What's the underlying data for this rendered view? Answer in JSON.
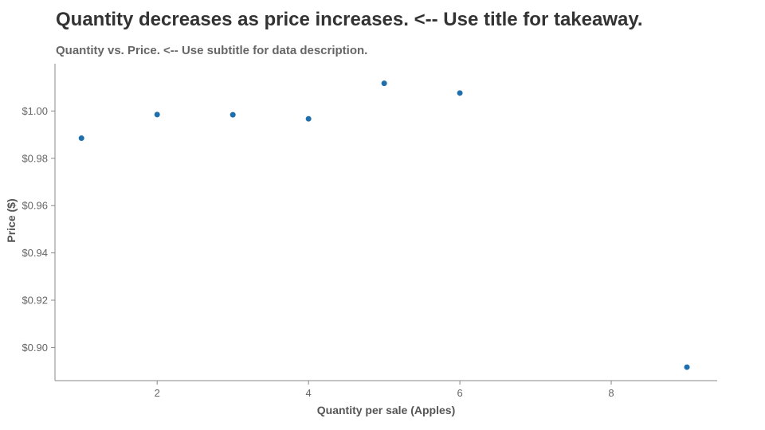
{
  "chart_data": {
    "type": "scatter",
    "title": "Quantity decreases as price increases. <--  Use title for takeaway.",
    "subtitle": "Quantity vs. Price. <-- Use subtitle for data description.",
    "xlabel": "Quantity per sale (Apples)",
    "ylabel": "Price ($)",
    "xlim": [
      0.65,
      9.4
    ],
    "ylim": [
      0.886,
      1.02
    ],
    "x_ticks": [
      2,
      4,
      6,
      8
    ],
    "x_tick_labels": [
      "2",
      "4",
      "6",
      "8"
    ],
    "y_ticks": [
      0.9,
      0.92,
      0.94,
      0.96,
      0.98,
      1.0
    ],
    "y_tick_labels": [
      "$0.90",
      "$0.92",
      "$0.94",
      "$0.96",
      "$0.98",
      "$1.00"
    ],
    "points": [
      {
        "x": 1,
        "y": 0.9885
      },
      {
        "x": 2,
        "y": 0.9985
      },
      {
        "x": 3,
        "y": 0.9984
      },
      {
        "x": 4,
        "y": 0.9967
      },
      {
        "x": 5,
        "y": 1.0117
      },
      {
        "x": 6,
        "y": 1.0076
      },
      {
        "x": 9,
        "y": 0.8917
      }
    ],
    "marker_color": "#1f6fad",
    "grid": false
  }
}
